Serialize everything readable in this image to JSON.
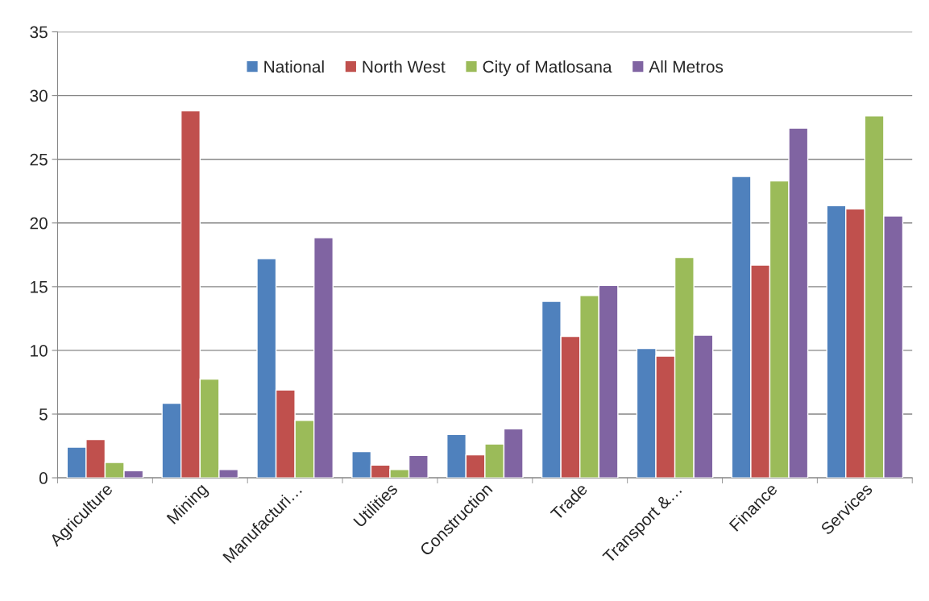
{
  "chart_data": {
    "type": "bar",
    "categories": [
      "Agriculture",
      "Mining",
      "Manufacturi…",
      "Utilities",
      "Construction",
      "Trade",
      "Transport &…",
      "Finance",
      "Services"
    ],
    "series": [
      {
        "name": "National",
        "color": "#4f81bd",
        "values": [
          2.4,
          5.85,
          17.2,
          2.05,
          3.4,
          13.85,
          10.15,
          23.65,
          21.35
        ]
      },
      {
        "name": "North West",
        "color": "#c0504d",
        "values": [
          3.0,
          28.8,
          6.9,
          1.0,
          1.8,
          11.1,
          9.55,
          16.7,
          21.1
        ]
      },
      {
        "name": "City of Matlosana",
        "color": "#9bbb59",
        "values": [
          1.2,
          7.75,
          4.5,
          0.65,
          2.65,
          14.3,
          17.3,
          23.3,
          28.4
        ]
      },
      {
        "name": "All Metros",
        "color": "#8064a2",
        "values": [
          0.55,
          0.65,
          18.85,
          1.75,
          3.85,
          15.1,
          11.2,
          27.45,
          20.55
        ]
      }
    ],
    "ylim": [
      0,
      35
    ],
    "yticks": [
      0,
      5,
      10,
      15,
      20,
      25,
      30,
      35
    ],
    "grid": "y",
    "legend": "top"
  }
}
